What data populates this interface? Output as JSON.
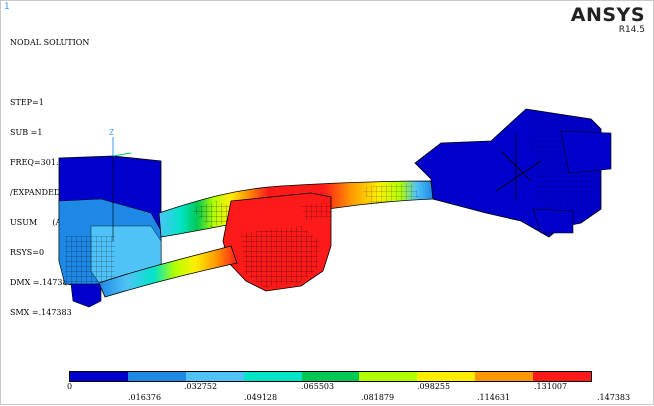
{
  "window": {
    "number": "1"
  },
  "brand": {
    "name": "ANSYS",
    "release": "R14.5"
  },
  "info": {
    "lines": [
      "NODAL SOLUTION",
      "",
      "STEP=1",
      "SUB =1",
      "FREQ=301.132",
      "/EXPANDED",
      "USUM      (AVG)",
      "RSYS=0",
      "DMX =.147383",
      "SMX =.147383"
    ]
  },
  "triad": {
    "label": "Z"
  },
  "legend": {
    "colors": [
      "#0000cc",
      "#1e88e5",
      "#4fc3f7",
      "#00e5c8",
      "#00c853",
      "#b2ff00",
      "#ffee00",
      "#ff9800",
      "#ff1a1a"
    ],
    "top_labels": [
      "0",
      ".032752",
      ".065503",
      ".098255",
      ".131007"
    ],
    "bottom_labels": [
      ".016376",
      ".049128",
      ".081879",
      ".114631",
      ".147383"
    ]
  }
}
